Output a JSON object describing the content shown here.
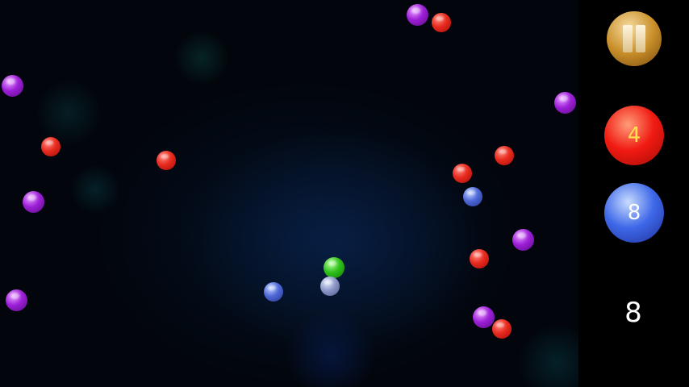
{
  "hud": {
    "pause_icon": "pause-icon",
    "red_counter": "4",
    "blue_counter": "8",
    "score": "8"
  },
  "colors": {
    "red": "#e82a1e",
    "purple": "#9d1fd8",
    "blue": "#4e68d8",
    "green": "#2fc11a",
    "pause_gold": "#c98f2a"
  }
}
